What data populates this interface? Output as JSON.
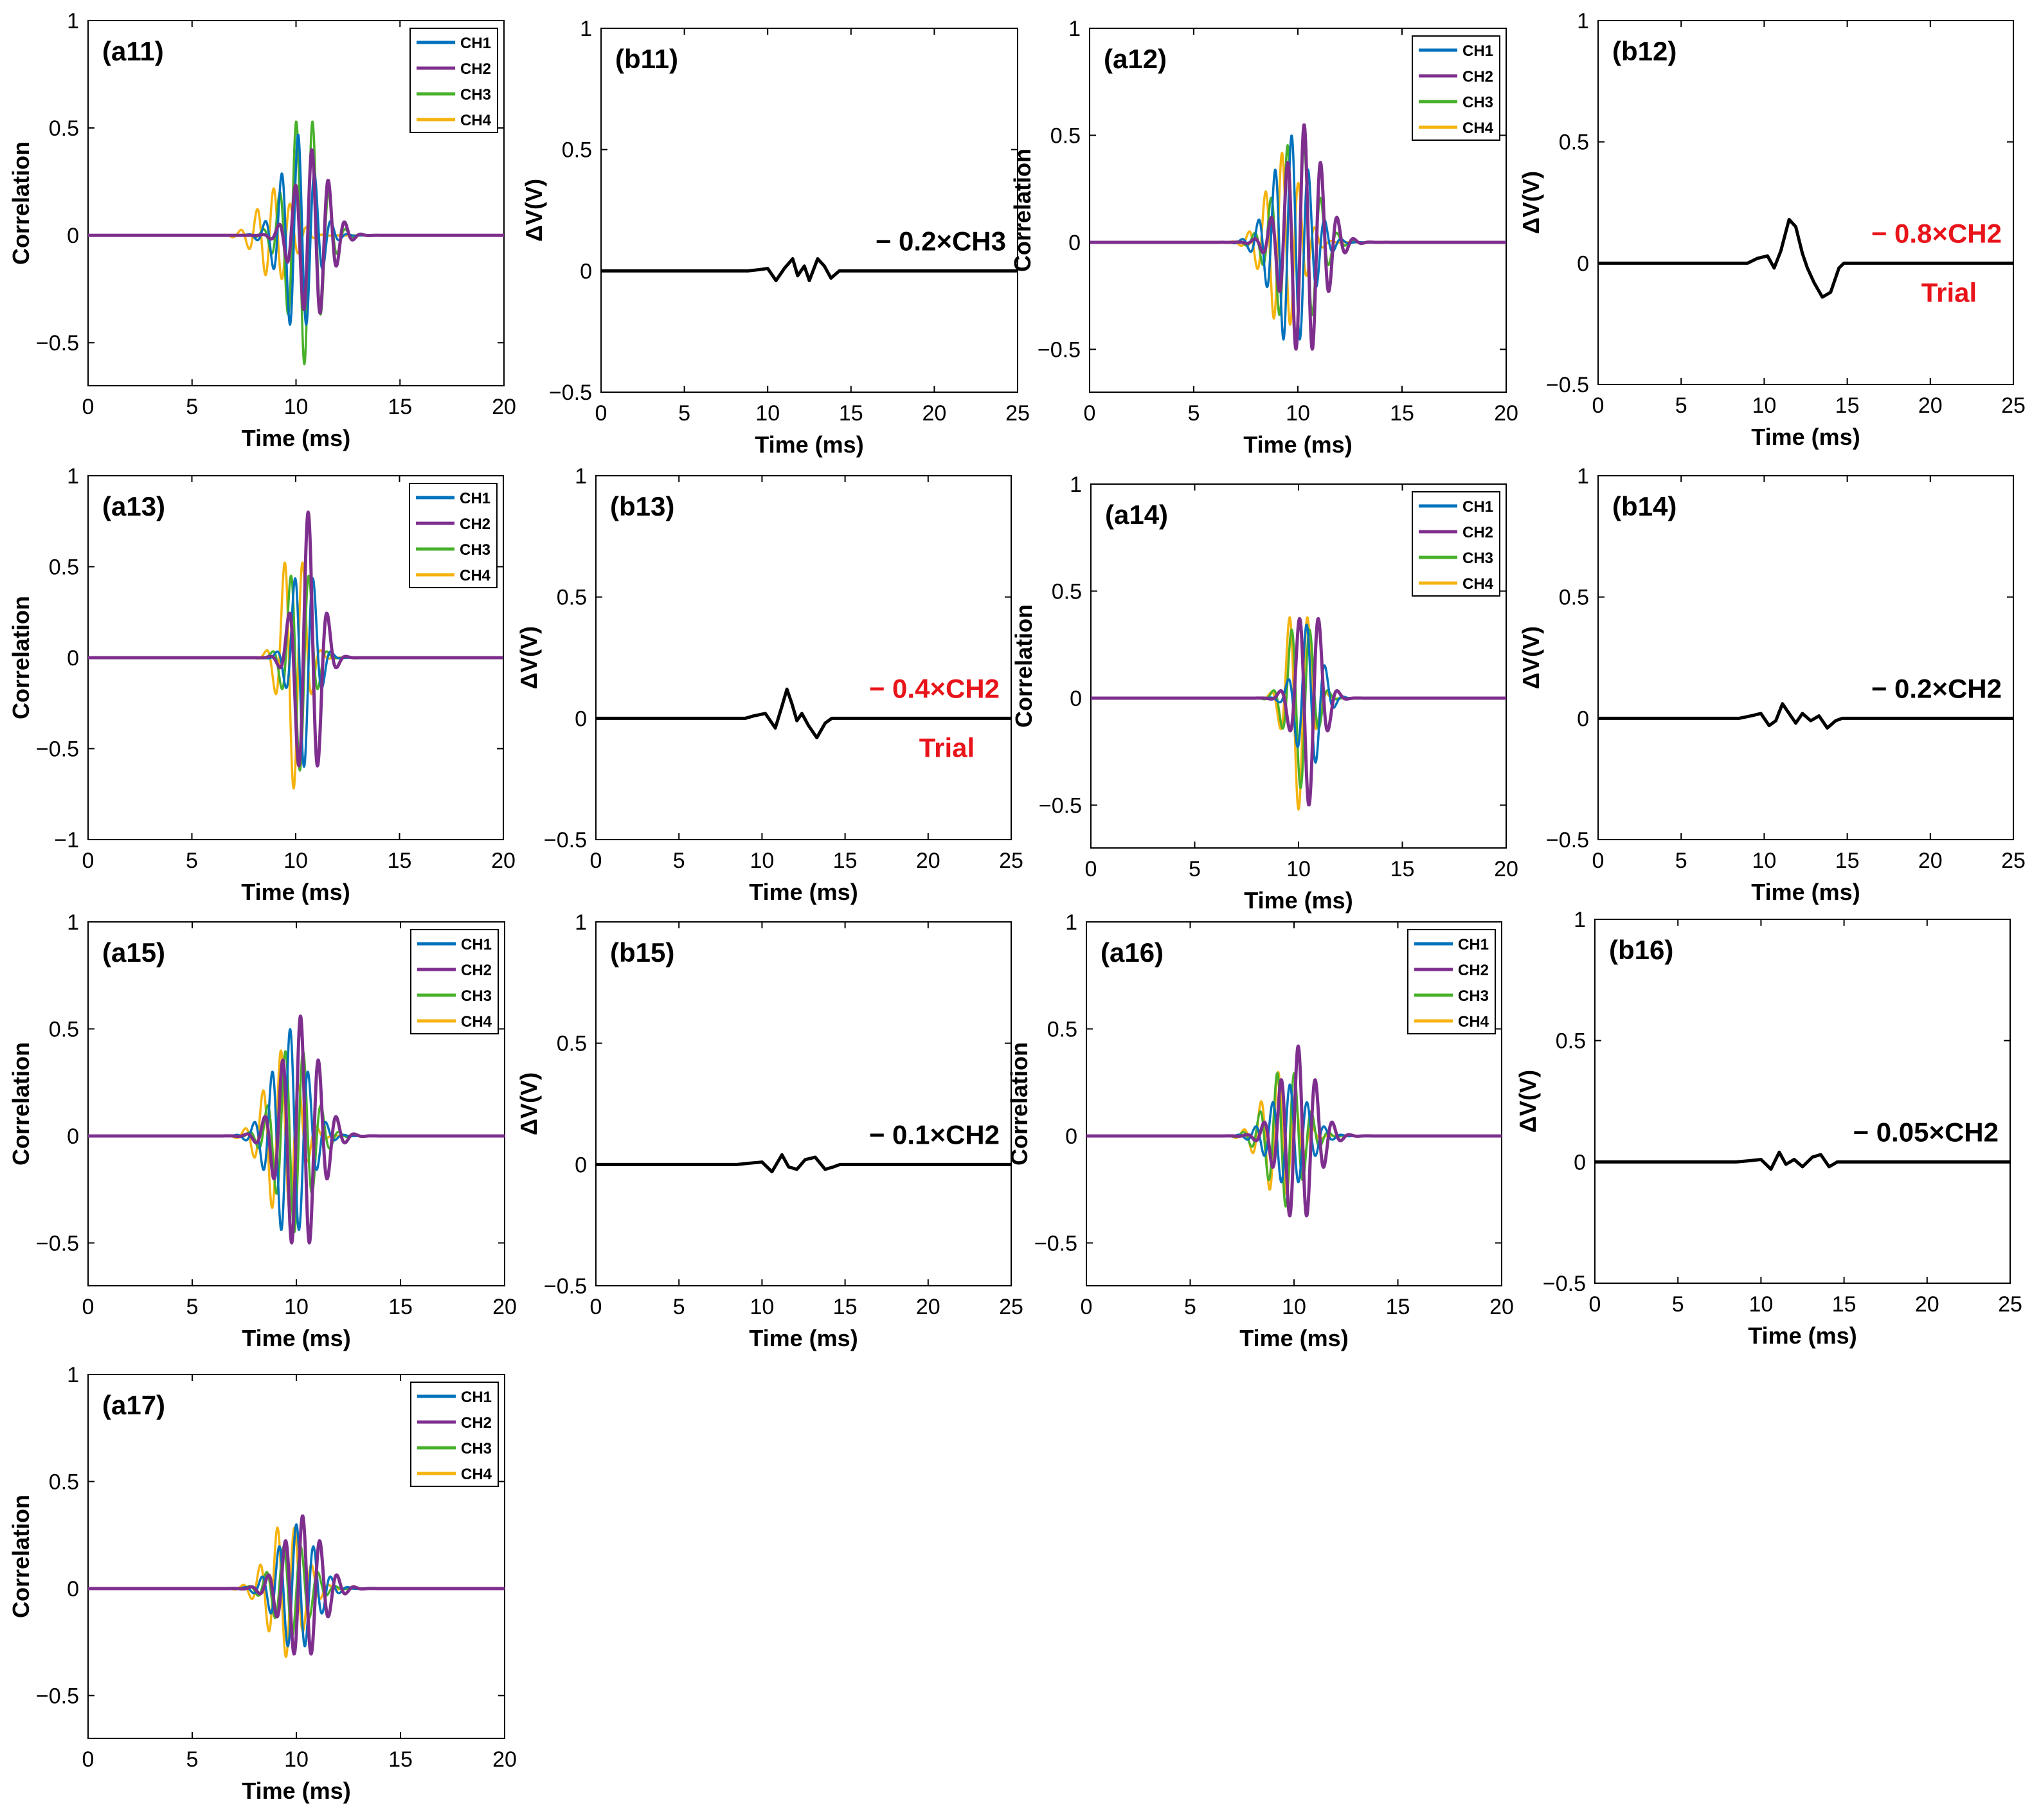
{
  "colors": {
    "CH1": "#0072BD",
    "CH2": "#7E2F8E",
    "CH3": "#48B02B",
    "CH4": "#F5B30F",
    "dv": "#000000",
    "trial": "#E8141A"
  },
  "chart_data": [
    {
      "type": "line",
      "label": "(a11)",
      "xlabel": "Time (ms)",
      "ylabel": "Correlation",
      "xlim": [
        0,
        20
      ],
      "ylim": [
        -0.7,
        1
      ],
      "xticks": [
        0,
        5,
        10,
        15,
        20
      ],
      "yticks": [
        -0.5,
        0,
        0.5,
        1
      ],
      "ytick_labels": [
        "−0.5",
        "0",
        "0.5",
        "1"
      ],
      "legend": [
        "CH1",
        "CH2",
        "CH3",
        "CH4"
      ],
      "legend_position": "top-right",
      "series": [
        {
          "name": "CH1",
          "amp": 0.47,
          "center": 10.1,
          "width": 0.8,
          "freq": 1.25,
          "phase": 0.0
        },
        {
          "name": "CH2",
          "amp": 0.4,
          "center": 10.8,
          "width": 0.8,
          "freq": 1.25,
          "phase": 0.3
        },
        {
          "name": "CH3",
          "amp": 0.6,
          "center": 10.4,
          "width": 0.8,
          "freq": 1.25,
          "phase": 3.14
        },
        {
          "name": "CH4",
          "amp": 0.22,
          "center": 9.0,
          "width": 0.8,
          "freq": 1.25,
          "phase": 0.6
        }
      ]
    },
    {
      "type": "line",
      "label": "(b11)",
      "xlabel": "Time (ms)",
      "ylabel": "ΔV(V)",
      "xlim": [
        0,
        25
      ],
      "ylim": [
        -0.5,
        1
      ],
      "xticks": [
        0,
        5,
        10,
        15,
        20,
        25
      ],
      "yticks": [
        -0.5,
        0,
        0.5,
        1
      ],
      "ytick_labels": [
        "−0.5",
        "0",
        "0.5",
        "1"
      ],
      "annotation": "− 0.2×CH3",
      "annotation_color": "#000000",
      "trial_label": "",
      "series": [
        {
          "name": "ΔV",
          "points": [
            [
              0,
              0
            ],
            [
              8.8,
              0
            ],
            [
              9.5,
              0.005
            ],
            [
              10,
              0.01
            ],
            [
              10.5,
              -0.04
            ],
            [
              11,
              0.01
            ],
            [
              11.5,
              0.05
            ],
            [
              11.8,
              -0.02
            ],
            [
              12.2,
              0.02
            ],
            [
              12.5,
              -0.04
            ],
            [
              13,
              0.05
            ],
            [
              13.4,
              0.02
            ],
            [
              13.8,
              -0.03
            ],
            [
              14.3,
              0
            ],
            [
              25,
              0
            ]
          ]
        }
      ]
    },
    {
      "type": "line",
      "label": "(a12)",
      "xlabel": "Time (ms)",
      "ylabel": "Correlation",
      "xlim": [
        0,
        20
      ],
      "ylim": [
        -0.7,
        1
      ],
      "xticks": [
        0,
        5,
        10,
        15,
        20
      ],
      "yticks": [
        -0.5,
        0,
        0.5,
        1
      ],
      "ytick_labels": [
        "−0.5",
        "0",
        "0.5",
        "1"
      ],
      "legend": [
        "CH1",
        "CH2",
        "CH3",
        "CH4"
      ],
      "legend_position": "top-right",
      "series": [
        {
          "name": "CH1",
          "amp": 0.5,
          "center": 9.7,
          "width": 0.9,
          "freq": 1.25,
          "phase": 0.0
        },
        {
          "name": "CH2",
          "amp": 0.55,
          "center": 10.3,
          "width": 0.9,
          "freq": 1.25,
          "phase": 0.0
        },
        {
          "name": "CH3",
          "amp": 0.5,
          "center": 9.9,
          "width": 0.9,
          "freq": 1.25,
          "phase": 3.14
        },
        {
          "name": "CH4",
          "amp": 0.42,
          "center": 9.3,
          "width": 0.8,
          "freq": 1.25,
          "phase": 0.5
        }
      ]
    },
    {
      "type": "line",
      "label": "(b12)",
      "xlabel": "Time (ms)",
      "ylabel": "ΔV(V)",
      "xlim": [
        0,
        25
      ],
      "ylim": [
        -0.5,
        1
      ],
      "xticks": [
        0,
        5,
        10,
        15,
        20,
        25
      ],
      "yticks": [
        -0.5,
        0,
        0.5,
        1
      ],
      "ytick_labels": [
        "−0.5",
        "0",
        "0.5",
        "1"
      ],
      "annotation": "− 0.8×CH2",
      "annotation_color": "#E8141A",
      "trial_label": "Trial",
      "series": [
        {
          "name": "ΔV",
          "points": [
            [
              0,
              0
            ],
            [
              9,
              0
            ],
            [
              9.6,
              0.02
            ],
            [
              10.2,
              0.03
            ],
            [
              10.6,
              -0.02
            ],
            [
              11,
              0.05
            ],
            [
              11.5,
              0.18
            ],
            [
              11.9,
              0.15
            ],
            [
              12.3,
              0.04
            ],
            [
              12.6,
              -0.02
            ],
            [
              13,
              -0.08
            ],
            [
              13.5,
              -0.14
            ],
            [
              14,
              -0.12
            ],
            [
              14.5,
              -0.02
            ],
            [
              14.8,
              0
            ],
            [
              25,
              0
            ]
          ]
        }
      ]
    },
    {
      "type": "line",
      "label": "(a13)",
      "xlabel": "Time (ms)",
      "ylabel": "Correlation",
      "xlim": [
        0,
        20
      ],
      "ylim": [
        -1,
        1
      ],
      "xticks": [
        0,
        5,
        10,
        15,
        20
      ],
      "yticks": [
        -1,
        -0.5,
        0,
        0.5,
        1
      ],
      "ytick_labels": [
        "−1",
        "−0.5",
        "0",
        "0.5",
        "1"
      ],
      "legend": [
        "CH1",
        "CH2",
        "CH3",
        "CH4"
      ],
      "legend_position": "top-right",
      "series": [
        {
          "name": "CH1",
          "amp": 0.6,
          "center": 10.4,
          "width": 0.55,
          "freq": 1.1,
          "phase": 3.14
        },
        {
          "name": "CH2",
          "amp": 0.8,
          "center": 10.6,
          "width": 0.6,
          "freq": 1.05,
          "phase": 0.0
        },
        {
          "name": "CH3",
          "amp": 0.62,
          "center": 10.2,
          "width": 0.55,
          "freq": 1.1,
          "phase": 3.14
        },
        {
          "name": "CH4",
          "amp": 0.72,
          "center": 9.9,
          "width": 0.55,
          "freq": 1.1,
          "phase": 3.14
        }
      ]
    },
    {
      "type": "line",
      "label": "(b13)",
      "xlabel": "Time (ms)",
      "ylabel": "ΔV(V)",
      "xlim": [
        0,
        25
      ],
      "ylim": [
        -0.5,
        1
      ],
      "xticks": [
        0,
        5,
        10,
        15,
        20,
        25
      ],
      "yticks": [
        -0.5,
        0,
        0.5,
        1
      ],
      "ytick_labels": [
        "−0.5",
        "0",
        "0.5",
        "1"
      ],
      "annotation": "− 0.4×CH2",
      "annotation_color": "#E8141A",
      "trial_label": "Trial",
      "series": [
        {
          "name": "ΔV",
          "points": [
            [
              0,
              0
            ],
            [
              9,
              0
            ],
            [
              9.5,
              0.01
            ],
            [
              10.2,
              0.02
            ],
            [
              10.8,
              -0.04
            ],
            [
              11.2,
              0.05
            ],
            [
              11.5,
              0.12
            ],
            [
              11.8,
              0.06
            ],
            [
              12.1,
              -0.01
            ],
            [
              12.4,
              0.02
            ],
            [
              12.8,
              -0.03
            ],
            [
              13.3,
              -0.08
            ],
            [
              13.8,
              -0.02
            ],
            [
              14.2,
              0
            ],
            [
              25,
              0
            ]
          ]
        }
      ]
    },
    {
      "type": "line",
      "label": "(a14)",
      "xlabel": "Time (ms)",
      "ylabel": "Correlation",
      "xlim": [
        0,
        20
      ],
      "ylim": [
        -0.7,
        1
      ],
      "xticks": [
        0,
        5,
        10,
        15,
        20
      ],
      "yticks": [
        -0.5,
        0,
        0.5,
        1
      ],
      "ytick_labels": [
        "−0.5",
        "0",
        "0.5",
        "1"
      ],
      "legend": [
        "CH1",
        "CH2",
        "CH3",
        "CH4"
      ],
      "legend_position": "top-right",
      "series": [
        {
          "name": "CH1",
          "amp": 0.35,
          "center": 10.5,
          "width": 0.6,
          "freq": 1.1,
          "phase": 0.8
        },
        {
          "name": "CH2",
          "amp": 0.5,
          "center": 10.5,
          "width": 0.6,
          "freq": 1.05,
          "phase": 3.14
        },
        {
          "name": "CH3",
          "amp": 0.42,
          "center": 10.1,
          "width": 0.6,
          "freq": 1.1,
          "phase": 3.14
        },
        {
          "name": "CH4",
          "amp": 0.52,
          "center": 10.0,
          "width": 0.55,
          "freq": 1.1,
          "phase": 3.14
        }
      ]
    },
    {
      "type": "line",
      "label": "(b14)",
      "xlabel": "Time (ms)",
      "ylabel": "ΔV(V)",
      "xlim": [
        0,
        25
      ],
      "ylim": [
        -0.5,
        1
      ],
      "xticks": [
        0,
        5,
        10,
        15,
        20,
        25
      ],
      "yticks": [
        -0.5,
        0,
        0.5,
        1
      ],
      "ytick_labels": [
        "−0.5",
        "0",
        "0.5",
        "1"
      ],
      "annotation": "− 0.2×CH2",
      "annotation_color": "#000000",
      "trial_label": "",
      "series": [
        {
          "name": "ΔV",
          "points": [
            [
              0,
              0
            ],
            [
              8.5,
              0
            ],
            [
              9.2,
              0.01
            ],
            [
              9.8,
              0.02
            ],
            [
              10.3,
              -0.03
            ],
            [
              10.7,
              -0.01
            ],
            [
              11.1,
              0.06
            ],
            [
              11.5,
              0.02
            ],
            [
              11.9,
              -0.02
            ],
            [
              12.3,
              0.02
            ],
            [
              12.8,
              -0.01
            ],
            [
              13.3,
              0.01
            ],
            [
              13.8,
              -0.04
            ],
            [
              14.3,
              -0.01
            ],
            [
              14.7,
              0
            ],
            [
              25,
              0
            ]
          ]
        }
      ]
    },
    {
      "type": "line",
      "label": "(a15)",
      "xlabel": "Time (ms)",
      "ylabel": "Correlation",
      "xlim": [
        0,
        20
      ],
      "ylim": [
        -0.7,
        1
      ],
      "xticks": [
        0,
        5,
        10,
        15,
        20
      ],
      "yticks": [
        -0.5,
        0,
        0.5,
        1
      ],
      "ytick_labels": [
        "−0.5",
        "0",
        "0.5",
        "1"
      ],
      "legend": [
        "CH1",
        "CH2",
        "CH3",
        "CH4"
      ],
      "legend_position": "top-right",
      "series": [
        {
          "name": "CH1",
          "amp": 0.5,
          "center": 9.7,
          "width": 0.85,
          "freq": 1.15,
          "phase": 0.0
        },
        {
          "name": "CH2",
          "amp": 0.56,
          "center": 10.2,
          "width": 0.9,
          "freq": 1.15,
          "phase": 0.0
        },
        {
          "name": "CH3",
          "amp": 0.45,
          "center": 9.9,
          "width": 0.85,
          "freq": 1.15,
          "phase": 3.14
        },
        {
          "name": "CH4",
          "amp": 0.4,
          "center": 9.3,
          "width": 0.8,
          "freq": 1.15,
          "phase": 0.3
        }
      ]
    },
    {
      "type": "line",
      "label": "(b15)",
      "xlabel": "Time (ms)",
      "ylabel": "ΔV(V)",
      "xlim": [
        0,
        25
      ],
      "ylim": [
        -0.5,
        1
      ],
      "xticks": [
        0,
        5,
        10,
        15,
        20,
        25
      ],
      "yticks": [
        -0.5,
        0,
        0.5,
        1
      ],
      "ytick_labels": [
        "−0.5",
        "0",
        "0.5",
        "1"
      ],
      "annotation": "− 0.1×CH2",
      "annotation_color": "#000000",
      "trial_label": "",
      "series": [
        {
          "name": "ΔV",
          "points": [
            [
              0,
              0
            ],
            [
              8.5,
              0
            ],
            [
              9.2,
              0.005
            ],
            [
              10,
              0.01
            ],
            [
              10.6,
              -0.03
            ],
            [
              11.2,
              0.04
            ],
            [
              11.6,
              -0.01
            ],
            [
              12.1,
              -0.02
            ],
            [
              12.6,
              0.02
            ],
            [
              13.2,
              0.03
            ],
            [
              13.8,
              -0.02
            ],
            [
              14.3,
              -0.01
            ],
            [
              14.7,
              0
            ],
            [
              25,
              0
            ]
          ]
        }
      ]
    },
    {
      "type": "line",
      "label": "(a16)",
      "xlabel": "Time (ms)",
      "ylabel": "Correlation",
      "xlim": [
        0,
        20
      ],
      "ylim": [
        -0.7,
        1
      ],
      "xticks": [
        0,
        5,
        10,
        15,
        20
      ],
      "yticks": [
        -0.5,
        0,
        0.5,
        1
      ],
      "ytick_labels": [
        "−0.5",
        "0",
        "0.5",
        "1"
      ],
      "legend": [
        "CH1",
        "CH2",
        "CH3",
        "CH4"
      ],
      "legend_position": "top-right",
      "series": [
        {
          "name": "CH1",
          "amp": 0.24,
          "center": 9.8,
          "width": 0.9,
          "freq": 1.2,
          "phase": 0.0
        },
        {
          "name": "CH2",
          "amp": 0.42,
          "center": 10.2,
          "width": 0.85,
          "freq": 1.2,
          "phase": 0.0
        },
        {
          "name": "CH3",
          "amp": 0.33,
          "center": 9.6,
          "width": 0.85,
          "freq": 1.2,
          "phase": 3.14
        },
        {
          "name": "CH4",
          "amp": 0.3,
          "center": 9.3,
          "width": 0.8,
          "freq": 1.2,
          "phase": 0.5
        }
      ]
    },
    {
      "type": "line",
      "label": "(b16)",
      "xlabel": "Time (ms)",
      "ylabel": "ΔV(V)",
      "xlim": [
        0,
        25
      ],
      "ylim": [
        -0.5,
        1
      ],
      "xticks": [
        0,
        5,
        10,
        15,
        20,
        25
      ],
      "yticks": [
        -0.5,
        0,
        0.5,
        1
      ],
      "ytick_labels": [
        "−0.5",
        "0",
        "0.5",
        "1"
      ],
      "annotation": "− 0.05×CH2",
      "annotation_color": "#000000",
      "trial_label": "",
      "series": [
        {
          "name": "ΔV",
          "points": [
            [
              0,
              0
            ],
            [
              8.5,
              0
            ],
            [
              9.3,
              0.005
            ],
            [
              10,
              0.01
            ],
            [
              10.6,
              -0.03
            ],
            [
              11.1,
              0.04
            ],
            [
              11.5,
              -0.01
            ],
            [
              12,
              0.01
            ],
            [
              12.5,
              -0.02
            ],
            [
              13.1,
              0.02
            ],
            [
              13.6,
              0.03
            ],
            [
              14.1,
              -0.02
            ],
            [
              14.6,
              0
            ],
            [
              25,
              0
            ]
          ]
        }
      ]
    },
    {
      "type": "line",
      "label": "(a17)",
      "xlabel": "Time (ms)",
      "ylabel": "Correlation",
      "xlim": [
        0,
        20
      ],
      "ylim": [
        -0.7,
        1
      ],
      "xticks": [
        0,
        5,
        10,
        15,
        20
      ],
      "yticks": [
        -0.5,
        0,
        0.5,
        1
      ],
      "ytick_labels": [
        "−0.5",
        "0",
        "0.5",
        "1"
      ],
      "legend": [
        "CH1",
        "CH2",
        "CH3",
        "CH4"
      ],
      "legend_position": "top-right",
      "series": [
        {
          "name": "CH1",
          "amp": 0.3,
          "center": 10.0,
          "width": 0.9,
          "freq": 1.2,
          "phase": 0.0
        },
        {
          "name": "CH2",
          "amp": 0.34,
          "center": 10.3,
          "width": 0.9,
          "freq": 1.2,
          "phase": 0.0
        },
        {
          "name": "CH3",
          "amp": 0.22,
          "center": 9.8,
          "width": 0.85,
          "freq": 1.2,
          "phase": 3.14
        },
        {
          "name": "CH4",
          "amp": 0.32,
          "center": 9.5,
          "width": 0.85,
          "freq": 1.2,
          "phase": 3.14
        }
      ]
    }
  ]
}
